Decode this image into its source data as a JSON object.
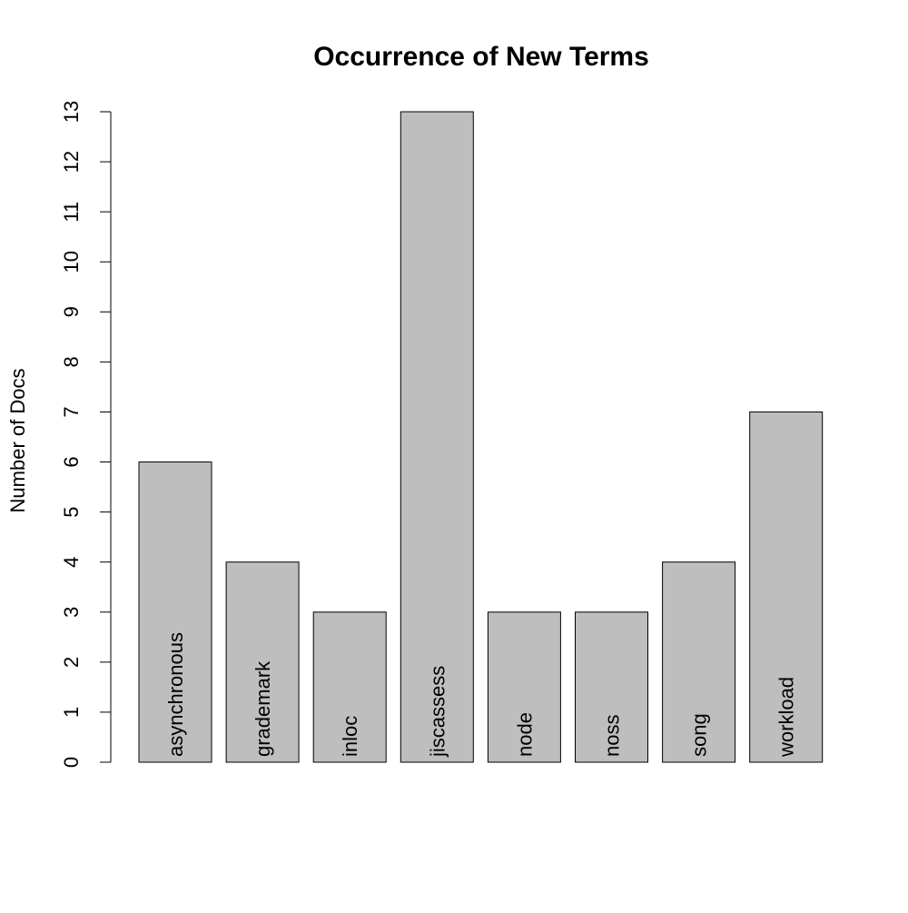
{
  "chart_data": {
    "type": "bar",
    "title": "Occurrence of New Terms",
    "xlabel": "",
    "ylabel": "Number of Docs",
    "categories": [
      "asynchronous",
      "grademark",
      "inloc",
      "jiscassess",
      "node",
      "noss",
      "song",
      "workload"
    ],
    "values": [
      6,
      4,
      3,
      13,
      3,
      3,
      4,
      7
    ],
    "ylim": [
      0,
      13
    ],
    "yticks": [
      "0",
      "1",
      "2",
      "3",
      "4",
      "5",
      "6",
      "7",
      "8",
      "9",
      "10",
      "11",
      "12",
      "13"
    ],
    "bar_color": "#bebebe",
    "grid": false,
    "legend": "none"
  }
}
